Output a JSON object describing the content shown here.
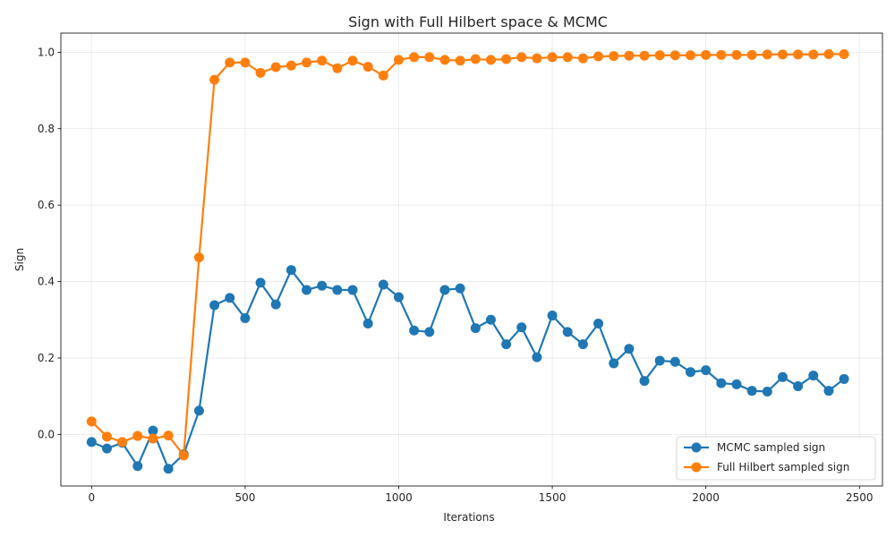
{
  "chart_data": {
    "type": "line",
    "title": "Sign with Full Hilbert space & MCMC",
    "xlabel": "Iterations",
    "ylabel": "Sign",
    "xlim": [
      -100,
      2575
    ],
    "ylim": [
      -0.135,
      1.05
    ],
    "xticks": [
      "0",
      "500",
      "1000",
      "1500",
      "2000",
      "2500"
    ],
    "yticks": [
      "0.0",
      "0.2",
      "0.4",
      "0.6",
      "0.8",
      "1.0"
    ],
    "grid": true,
    "legend_position": "lower right",
    "x": [
      0,
      50,
      100,
      150,
      200,
      250,
      300,
      350,
      400,
      450,
      500,
      550,
      600,
      650,
      700,
      750,
      800,
      850,
      900,
      950,
      1000,
      1050,
      1100,
      1150,
      1200,
      1250,
      1300,
      1350,
      1400,
      1450,
      1500,
      1550,
      1600,
      1650,
      1700,
      1750,
      1800,
      1850,
      1900,
      1950,
      2000,
      2050,
      2100,
      2150,
      2200,
      2250,
      2300,
      2350,
      2400,
      2450
    ],
    "series": [
      {
        "name": "MCMC sampled sign",
        "color": "#1f77b4",
        "values": [
          -0.02,
          -0.037,
          -0.022,
          -0.083,
          0.01,
          -0.09,
          -0.052,
          0.062,
          0.338,
          0.357,
          0.304,
          0.397,
          0.34,
          0.43,
          0.378,
          0.389,
          0.378,
          0.378,
          0.29,
          0.392,
          0.359,
          0.272,
          0.268,
          0.378,
          0.382,
          0.278,
          0.3,
          0.236,
          0.28,
          0.202,
          0.311,
          0.268,
          0.236,
          0.29,
          0.186,
          0.224,
          0.14,
          0.193,
          0.19,
          0.163,
          0.168,
          0.134,
          0.131,
          0.114,
          0.112,
          0.15,
          0.126,
          0.154,
          0.114,
          0.145
        ]
      },
      {
        "name": "Full Hilbert sampled sign",
        "color": "#ff7f0e",
        "values": [
          0.034,
          -0.006,
          -0.02,
          -0.004,
          -0.011,
          -0.003,
          -0.055,
          0.463,
          0.928,
          0.973,
          0.973,
          0.946,
          0.961,
          0.965,
          0.973,
          0.978,
          0.958,
          0.978,
          0.962,
          0.939,
          0.98,
          0.987,
          0.987,
          0.98,
          0.978,
          0.982,
          0.98,
          0.982,
          0.987,
          0.984,
          0.987,
          0.987,
          0.984,
          0.989,
          0.99,
          0.991,
          0.991,
          0.992,
          0.992,
          0.992,
          0.993,
          0.993,
          0.993,
          0.993,
          0.994,
          0.994,
          0.994,
          0.994,
          0.995,
          0.995
        ]
      }
    ]
  }
}
